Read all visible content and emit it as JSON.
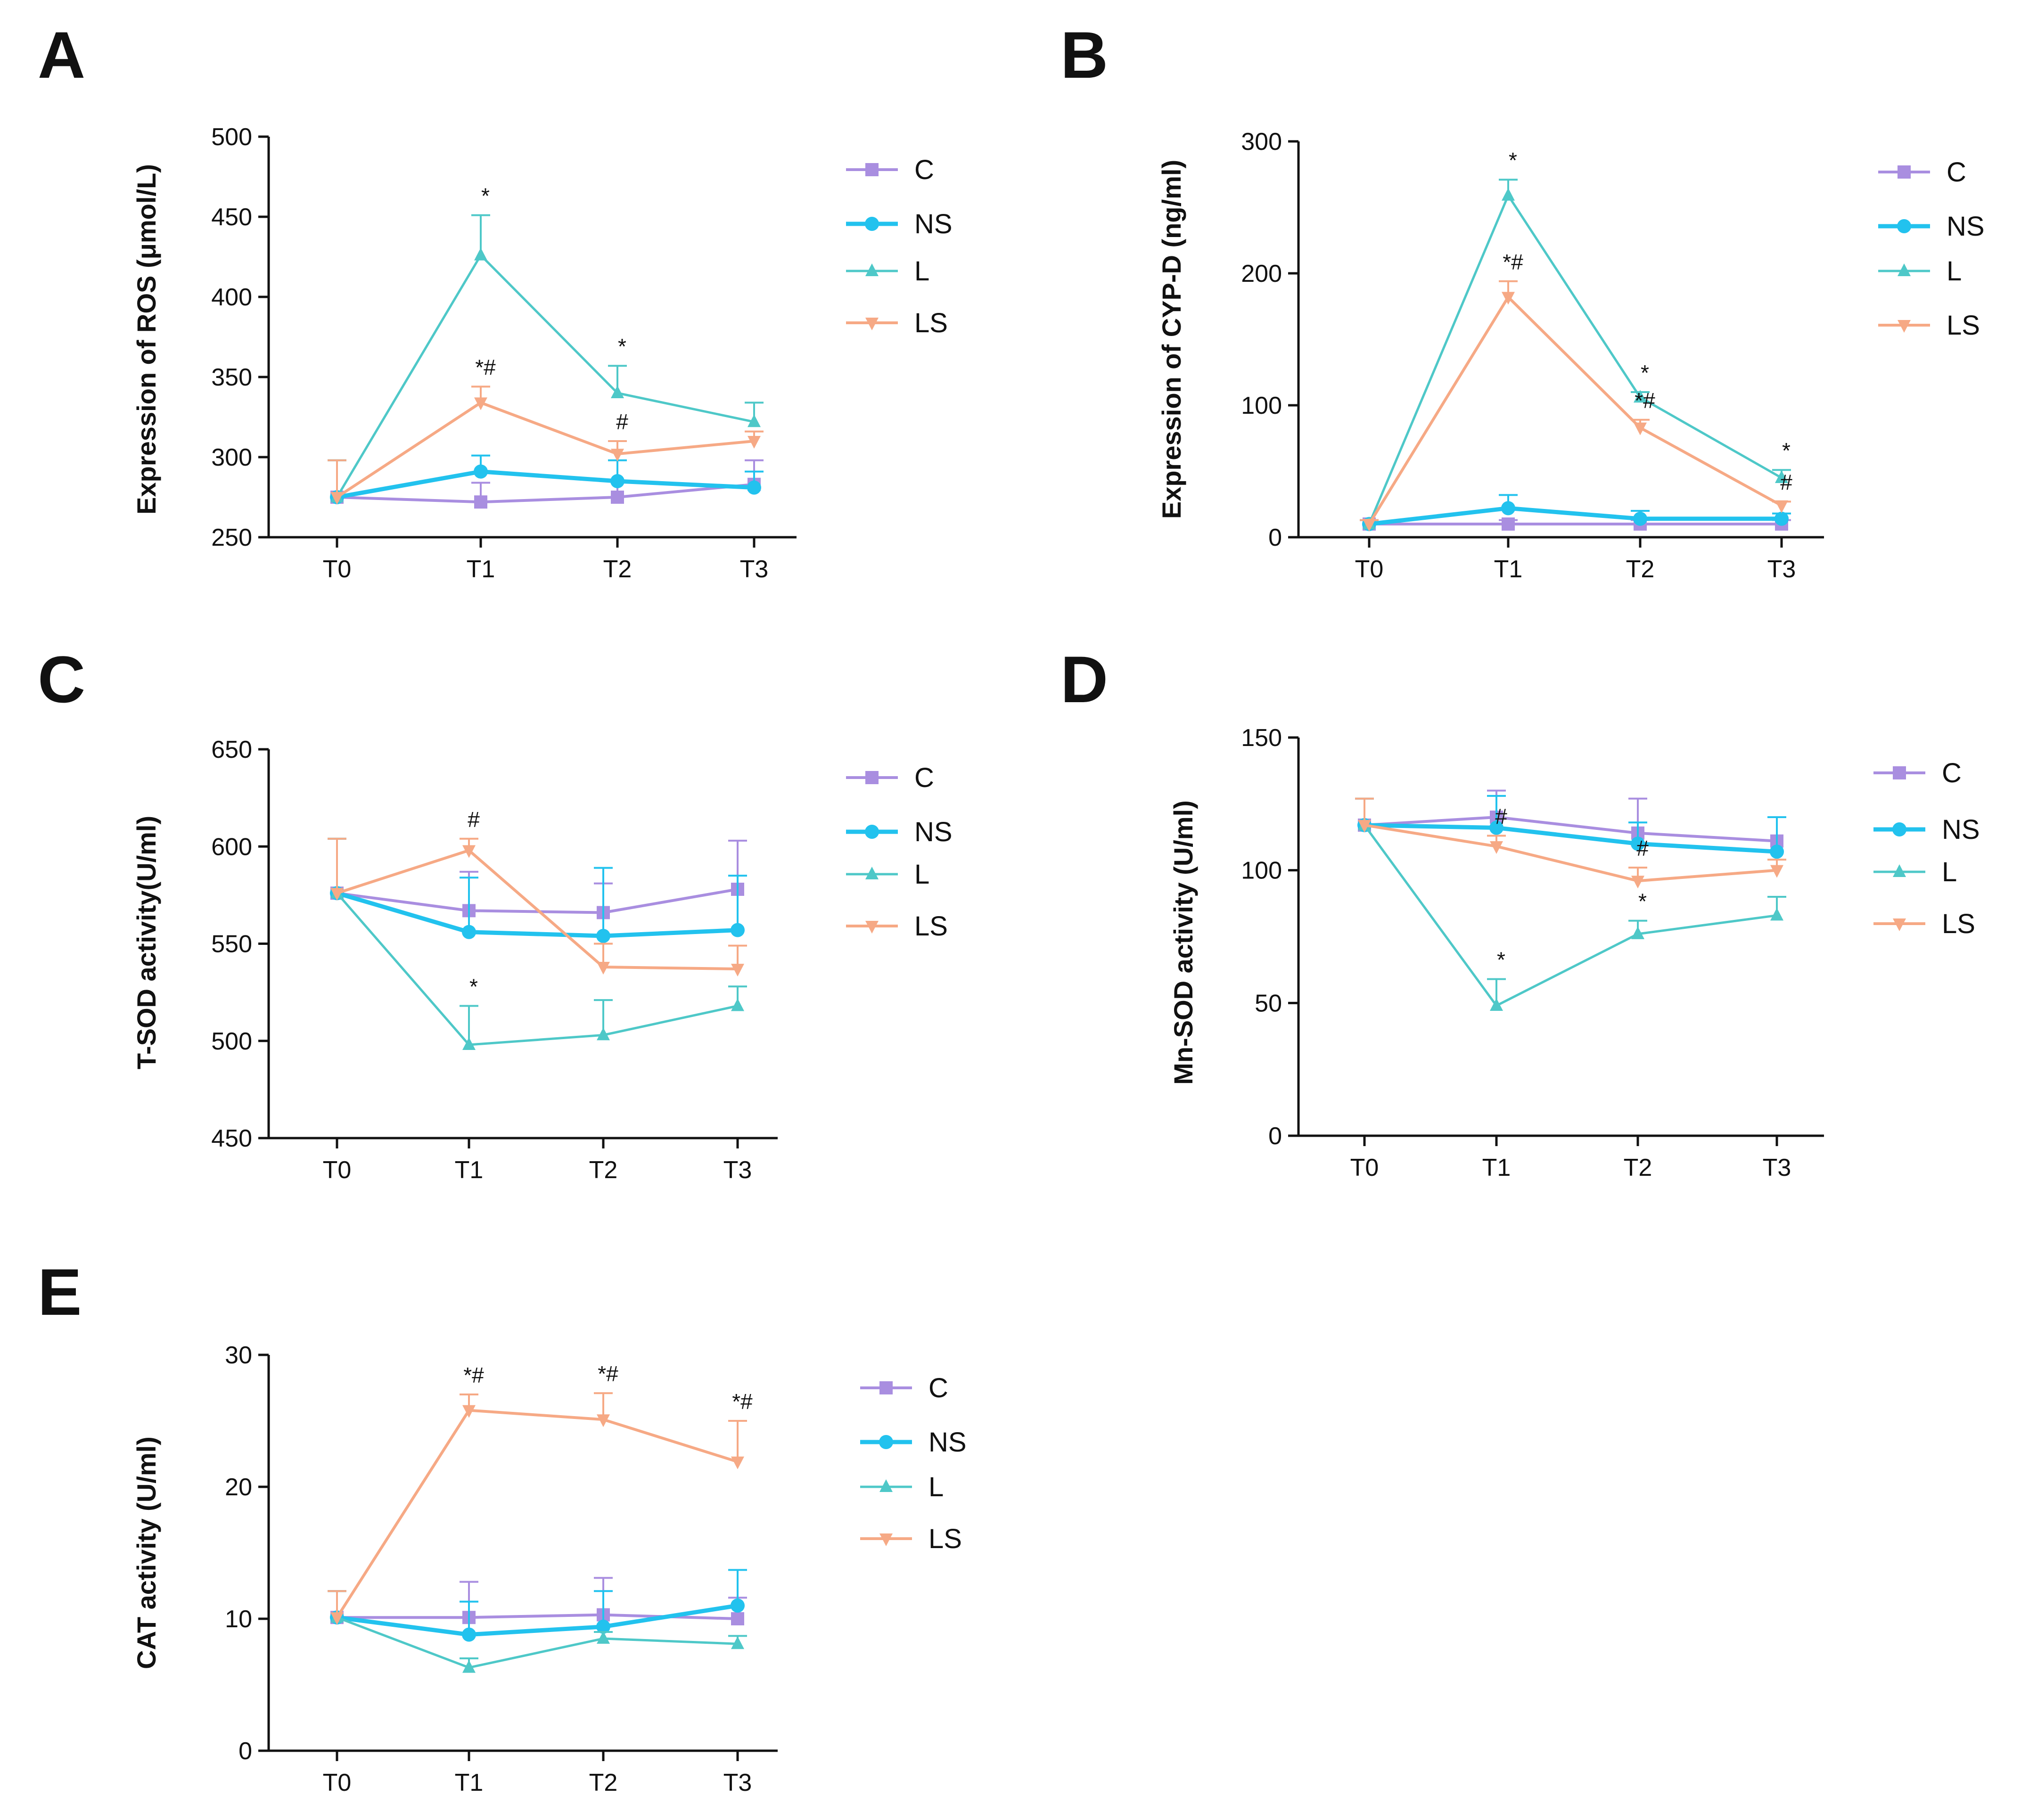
{
  "colors": {
    "C": "#a98ee0",
    "NS": "#22c2ee",
    "L": "#4ec8c8",
    "LS": "#f6a985",
    "ink": "#111111"
  },
  "legend": [
    {
      "key": "C",
      "label": "C",
      "marker": "square"
    },
    {
      "key": "NS",
      "label": "NS",
      "marker": "circle"
    },
    {
      "key": "L",
      "label": "L",
      "marker": "triangle-up"
    },
    {
      "key": "LS",
      "label": "LS",
      "marker": "triangle-down"
    }
  ],
  "chart_data": [
    {
      "panel": "A",
      "type": "line",
      "title": "",
      "xlabel": "",
      "ylabel": "Expression of ROS (μmol/L)",
      "categories": [
        "T0",
        "T1",
        "T2",
        "T3"
      ],
      "ylim": [
        250,
        500
      ],
      "yticks": [
        250,
        300,
        350,
        400,
        450,
        500
      ],
      "series": [
        {
          "name": "C",
          "values": [
            275,
            272,
            275,
            283
          ],
          "errors": [
            23,
            12,
            10,
            15
          ]
        },
        {
          "name": "NS",
          "values": [
            275,
            291,
            285,
            281
          ],
          "errors": [
            23,
            10,
            13,
            10
          ]
        },
        {
          "name": "L",
          "values": [
            275,
            426,
            340,
            322
          ],
          "errors": [
            23,
            25,
            17,
            12
          ]
        },
        {
          "name": "LS",
          "values": [
            275,
            334,
            302,
            310
          ],
          "errors": [
            23,
            10,
            8,
            6
          ]
        }
      ],
      "annotations": [
        {
          "series": "L",
          "x": "T1",
          "text": "*"
        },
        {
          "series": "LS",
          "x": "T1",
          "text": "*#"
        },
        {
          "series": "L",
          "x": "T2",
          "text": "*"
        },
        {
          "series": "LS",
          "x": "T2",
          "text": "#"
        }
      ]
    },
    {
      "panel": "B",
      "type": "line",
      "title": "",
      "xlabel": "",
      "ylabel": "Expression of CYP-D (ng/ml)",
      "categories": [
        "T0",
        "T1",
        "T2",
        "T3"
      ],
      "ylim": [
        0,
        300
      ],
      "yticks": [
        0,
        100,
        200,
        300
      ],
      "series": [
        {
          "name": "C",
          "values": [
            10,
            10,
            10,
            10
          ],
          "errors": [
            3,
            3,
            3,
            3
          ]
        },
        {
          "name": "NS",
          "values": [
            10,
            22,
            14,
            14
          ],
          "errors": [
            3,
            10,
            6,
            4
          ]
        },
        {
          "name": "L",
          "values": [
            10,
            259,
            106,
            45
          ],
          "errors": [
            3,
            12,
            4,
            6
          ]
        },
        {
          "name": "LS",
          "values": [
            10,
            182,
            83,
            24
          ],
          "errors": [
            3,
            12,
            6,
            3
          ]
        }
      ],
      "annotations": [
        {
          "series": "L",
          "x": "T1",
          "text": "*"
        },
        {
          "series": "LS",
          "x": "T1",
          "text": "*#"
        },
        {
          "series": "L",
          "x": "T2",
          "text": "*"
        },
        {
          "series": "LS",
          "x": "T2",
          "text": "*#"
        },
        {
          "series": "L",
          "x": "T3",
          "text": "*"
        },
        {
          "series": "LS",
          "x": "T3",
          "text": "#"
        }
      ]
    },
    {
      "panel": "C",
      "type": "line",
      "title": "",
      "xlabel": "",
      "ylabel": "T-SOD activity(U/ml)",
      "categories": [
        "T0",
        "T1",
        "T2",
        "T3"
      ],
      "ylim": [
        450,
        650
      ],
      "yticks": [
        450,
        500,
        550,
        600,
        650
      ],
      "series": [
        {
          "name": "C",
          "values": [
            576,
            567,
            566,
            578
          ],
          "errors": [
            28,
            20,
            15,
            25
          ]
        },
        {
          "name": "NS",
          "values": [
            576,
            556,
            554,
            557
          ],
          "errors": [
            28,
            28,
            35,
            28
          ]
        },
        {
          "name": "L",
          "values": [
            576,
            498,
            503,
            518
          ],
          "errors": [
            28,
            20,
            18,
            10
          ]
        },
        {
          "name": "LS",
          "values": [
            576,
            598,
            538,
            537
          ],
          "errors": [
            28,
            6,
            12,
            12
          ]
        }
      ],
      "annotations": [
        {
          "series": "LS",
          "x": "T1",
          "text": "#"
        },
        {
          "series": "L",
          "x": "T1",
          "text": "*"
        }
      ]
    },
    {
      "panel": "D",
      "type": "line",
      "title": "",
      "xlabel": "",
      "ylabel": "Mn-SOD activity (U/ml)",
      "categories": [
        "T0",
        "T1",
        "T2",
        "T3"
      ],
      "ylim": [
        0,
        150
      ],
      "yticks": [
        0,
        50,
        100,
        150
      ],
      "series": [
        {
          "name": "C",
          "values": [
            117,
            120,
            114,
            111
          ],
          "errors": [
            10,
            10,
            13,
            9
          ]
        },
        {
          "name": "NS",
          "values": [
            117,
            116,
            110,
            107
          ],
          "errors": [
            10,
            12,
            8,
            13
          ]
        },
        {
          "name": "L",
          "values": [
            117,
            49,
            76,
            83
          ],
          "errors": [
            10,
            10,
            5,
            7
          ]
        },
        {
          "name": "LS",
          "values": [
            117,
            109,
            96,
            100
          ],
          "errors": [
            10,
            4,
            5,
            4
          ]
        }
      ],
      "annotations": [
        {
          "series": "LS",
          "x": "T1",
          "text": "#"
        },
        {
          "series": "LS",
          "x": "T2",
          "text": "#"
        },
        {
          "series": "L",
          "x": "T1",
          "text": "*"
        },
        {
          "series": "L",
          "x": "T2",
          "text": "*"
        }
      ]
    },
    {
      "panel": "E",
      "type": "line",
      "title": "",
      "xlabel": "",
      "ylabel": "CAT activity (U/ml)",
      "categories": [
        "T0",
        "T1",
        "T2",
        "T3"
      ],
      "ylim": [
        0,
        30
      ],
      "yticks": [
        0,
        10,
        20,
        30
      ],
      "series": [
        {
          "name": "C",
          "values": [
            10.1,
            10.1,
            10.3,
            10.0
          ],
          "errors": [
            2.0,
            2.7,
            2.8,
            1.6
          ]
        },
        {
          "name": "NS",
          "values": [
            10.1,
            8.8,
            9.4,
            11.0
          ],
          "errors": [
            2.0,
            2.5,
            2.7,
            2.7
          ]
        },
        {
          "name": "L",
          "values": [
            10.1,
            6.3,
            8.5,
            8.1
          ],
          "errors": [
            2.0,
            0.7,
            0.5,
            0.6
          ]
        },
        {
          "name": "LS",
          "values": [
            10.1,
            25.8,
            25.1,
            21.9
          ],
          "errors": [
            2.0,
            1.2,
            2.0,
            3.1
          ]
        }
      ],
      "annotations": [
        {
          "series": "LS",
          "x": "T1",
          "text": "*#"
        },
        {
          "series": "LS",
          "x": "T2",
          "text": "*#"
        },
        {
          "series": "LS",
          "x": "T3",
          "text": "*#"
        }
      ]
    }
  ]
}
